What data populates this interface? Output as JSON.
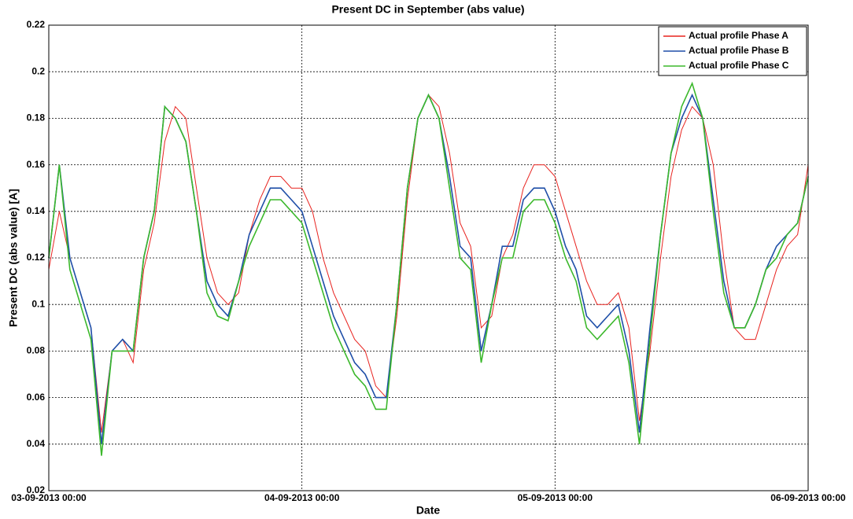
{
  "chart_data": {
    "type": "line",
    "title": "Present DC in September (abs value)",
    "x_label": "Date",
    "y_label": "Present DC (abs value) [A]",
    "x": [
      "03-09-2013 00:00",
      "03-09-2013 01:00",
      "03-09-2013 02:00",
      "03-09-2013 03:00",
      "03-09-2013 04:00",
      "03-09-2013 05:00",
      "03-09-2013 06:00",
      "03-09-2013 07:00",
      "03-09-2013 08:00",
      "03-09-2013 09:00",
      "03-09-2013 10:00",
      "03-09-2013 11:00",
      "03-09-2013 12:00",
      "03-09-2013 13:00",
      "03-09-2013 14:00",
      "03-09-2013 15:00",
      "03-09-2013 16:00",
      "03-09-2013 17:00",
      "03-09-2013 18:00",
      "03-09-2013 19:00",
      "03-09-2013 20:00",
      "03-09-2013 21:00",
      "03-09-2013 22:00",
      "03-09-2013 23:00",
      "04-09-2013 00:00",
      "04-09-2013 01:00",
      "04-09-2013 02:00",
      "04-09-2013 03:00",
      "04-09-2013 04:00",
      "04-09-2013 05:00",
      "04-09-2013 06:00",
      "04-09-2013 07:00",
      "04-09-2013 08:00",
      "04-09-2013 09:00",
      "04-09-2013 10:00",
      "04-09-2013 11:00",
      "04-09-2013 12:00",
      "04-09-2013 13:00",
      "04-09-2013 14:00",
      "04-09-2013 15:00",
      "04-09-2013 16:00",
      "04-09-2013 17:00",
      "04-09-2013 18:00",
      "04-09-2013 19:00",
      "04-09-2013 20:00",
      "04-09-2013 21:00",
      "04-09-2013 22:00",
      "04-09-2013 23:00",
      "05-09-2013 00:00",
      "05-09-2013 01:00",
      "05-09-2013 02:00",
      "05-09-2013 03:00",
      "05-09-2013 04:00",
      "05-09-2013 05:00",
      "05-09-2013 06:00",
      "05-09-2013 07:00",
      "05-09-2013 08:00",
      "05-09-2013 09:00",
      "05-09-2013 10:00",
      "05-09-2013 11:00",
      "05-09-2013 12:00",
      "05-09-2013 13:00",
      "05-09-2013 14:00",
      "05-09-2013 15:00",
      "05-09-2013 16:00",
      "05-09-2013 17:00",
      "05-09-2013 18:00",
      "05-09-2013 19:00",
      "05-09-2013 20:00",
      "05-09-2013 21:00",
      "05-09-2013 22:00",
      "05-09-2013 23:00",
      "06-09-2013 00:00"
    ],
    "series": [
      {
        "name": "Actual profile Phase A",
        "color": "#e8231f",
        "values": [
          0.115,
          0.14,
          0.12,
          0.105,
          0.09,
          0.045,
          0.08,
          0.085,
          0.075,
          0.115,
          0.135,
          0.17,
          0.185,
          0.18,
          0.15,
          0.12,
          0.105,
          0.1,
          0.105,
          0.13,
          0.145,
          0.155,
          0.155,
          0.15,
          0.15,
          0.14,
          0.12,
          0.105,
          0.095,
          0.085,
          0.08,
          0.065,
          0.06,
          0.095,
          0.145,
          0.18,
          0.19,
          0.185,
          0.165,
          0.135,
          0.125,
          0.09,
          0.095,
          0.12,
          0.13,
          0.15,
          0.16,
          0.16,
          0.155,
          0.14,
          0.125,
          0.11,
          0.1,
          0.1,
          0.105,
          0.09,
          0.05,
          0.08,
          0.12,
          0.155,
          0.175,
          0.185,
          0.18,
          0.16,
          0.12,
          0.09,
          0.085,
          0.085,
          0.1,
          0.115,
          0.125,
          0.13,
          0.16
        ]
      },
      {
        "name": "Actual profile Phase B",
        "color": "#1f4fa8",
        "values": [
          0.12,
          0.16,
          0.12,
          0.105,
          0.09,
          0.04,
          0.08,
          0.085,
          0.08,
          0.12,
          0.14,
          0.185,
          0.18,
          0.17,
          0.14,
          0.11,
          0.1,
          0.095,
          0.11,
          0.13,
          0.14,
          0.15,
          0.15,
          0.145,
          0.14,
          0.125,
          0.11,
          0.095,
          0.085,
          0.075,
          0.07,
          0.06,
          0.06,
          0.1,
          0.15,
          0.18,
          0.19,
          0.18,
          0.155,
          0.125,
          0.12,
          0.08,
          0.1,
          0.125,
          0.125,
          0.145,
          0.15,
          0.15,
          0.14,
          0.125,
          0.115,
          0.095,
          0.09,
          0.095,
          0.1,
          0.08,
          0.045,
          0.09,
          0.13,
          0.165,
          0.18,
          0.19,
          0.18,
          0.145,
          0.11,
          0.09,
          0.09,
          0.1,
          0.115,
          0.125,
          0.13,
          0.135,
          0.155
        ]
      },
      {
        "name": "Actual profile Phase C",
        "color": "#3cb82c",
        "values": [
          0.12,
          0.16,
          0.115,
          0.1,
          0.085,
          0.035,
          0.08,
          0.08,
          0.08,
          0.12,
          0.14,
          0.185,
          0.18,
          0.17,
          0.14,
          0.105,
          0.095,
          0.093,
          0.11,
          0.125,
          0.135,
          0.145,
          0.145,
          0.14,
          0.135,
          0.12,
          0.105,
          0.09,
          0.08,
          0.07,
          0.065,
          0.055,
          0.055,
          0.1,
          0.15,
          0.18,
          0.19,
          0.18,
          0.15,
          0.12,
          0.115,
          0.075,
          0.1,
          0.12,
          0.12,
          0.14,
          0.145,
          0.145,
          0.135,
          0.12,
          0.11,
          0.09,
          0.085,
          0.09,
          0.095,
          0.075,
          0.04,
          0.085,
          0.13,
          0.165,
          0.185,
          0.195,
          0.18,
          0.14,
          0.105,
          0.09,
          0.09,
          0.1,
          0.115,
          0.12,
          0.13,
          0.135,
          0.155
        ]
      }
    ],
    "xlim": [
      "03-09-2013 00:00",
      "06-09-2013 00:00"
    ],
    "xticks": [
      "03-09-2013 00:00",
      "04-09-2013 00:00",
      "05-09-2013 00:00",
      "06-09-2013 00:00"
    ],
    "ylim": [
      0.02,
      0.22
    ],
    "yticks": [
      0.02,
      0.04,
      0.06,
      0.08,
      0.1,
      0.12,
      0.14,
      0.16,
      0.18,
      0.2,
      0.22
    ],
    "grid": true,
    "legend": "top-right"
  }
}
